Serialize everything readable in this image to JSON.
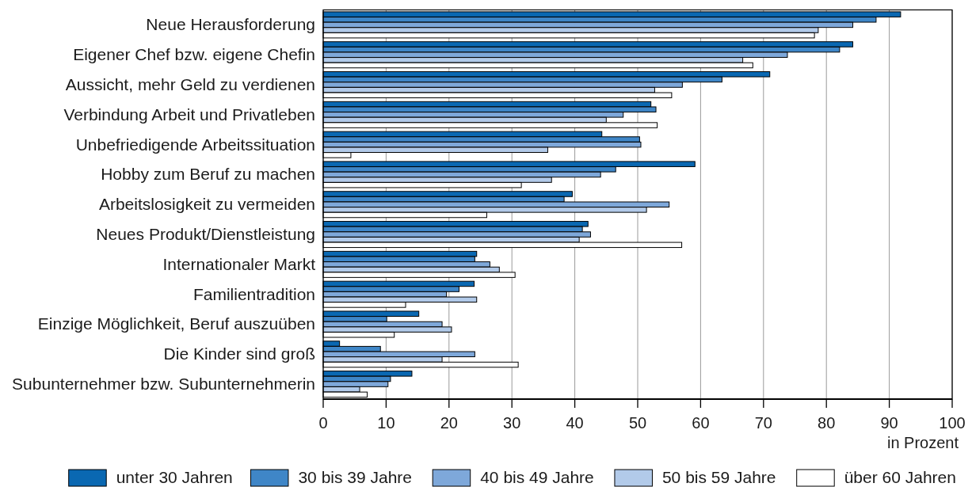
{
  "chart_data": {
    "type": "bar",
    "orientation": "horizontal",
    "categories": [
      "Neue Herausforderung",
      "Eigener Chef bzw. eigene Chefin",
      "Aussicht, mehr Geld zu verdienen",
      "Verbindung Arbeit und Privatleben",
      "Unbefriedigende Arbeitssituation",
      "Hobby zum Beruf zu machen",
      "Arbeitslosigkeit zu vermeiden",
      "Neues Produkt/Dienstleistung",
      "Internationaler Markt",
      "Familientradition",
      "Einzige Möglichkeit, Beruf auszuüben",
      "Die Kinder sind groß",
      "Subunternehmer bzw. Subunternehmerin"
    ],
    "series": [
      {
        "name": "unter 30 Jahren",
        "color": "#0a68b2",
        "values": [
          91.8,
          84.2,
          71.0,
          52.1,
          44.3,
          59.1,
          39.6,
          42.1,
          24.4,
          24.0,
          15.2,
          2.6,
          14.1
        ]
      },
      {
        "name": "30 bis 39 Jahre",
        "color": "#3f86c7",
        "values": [
          87.9,
          82.1,
          63.4,
          52.9,
          50.3,
          46.5,
          38.3,
          41.2,
          24.1,
          21.6,
          10.1,
          9.1,
          10.7
        ]
      },
      {
        "name": "40 bis 49 Jahre",
        "color": "#7ea8da",
        "values": [
          84.2,
          73.8,
          57.1,
          47.7,
          50.5,
          44.1,
          55.0,
          42.5,
          26.5,
          19.6,
          18.9,
          24.1,
          10.3
        ]
      },
      {
        "name": "50 bis 59 Jahre",
        "color": "#b2cae9",
        "values": [
          78.7,
          66.7,
          52.7,
          45.0,
          35.7,
          36.3,
          51.4,
          40.7,
          28.0,
          24.4,
          20.4,
          18.9,
          5.8
        ]
      },
      {
        "name": "über 60 Jahren",
        "color": "#ffffff",
        "values": [
          78.1,
          68.3,
          55.4,
          53.1,
          4.4,
          31.5,
          26.0,
          57.0,
          30.5,
          13.1,
          11.3,
          31.0,
          7.0
        ]
      }
    ],
    "xlabel": "in Prozent",
    "xlim": [
      0,
      100
    ],
    "xticks": [
      0,
      10,
      20,
      30,
      40,
      50,
      60,
      70,
      80,
      90,
      100
    ],
    "grid": "x",
    "legend": "bottom"
  }
}
